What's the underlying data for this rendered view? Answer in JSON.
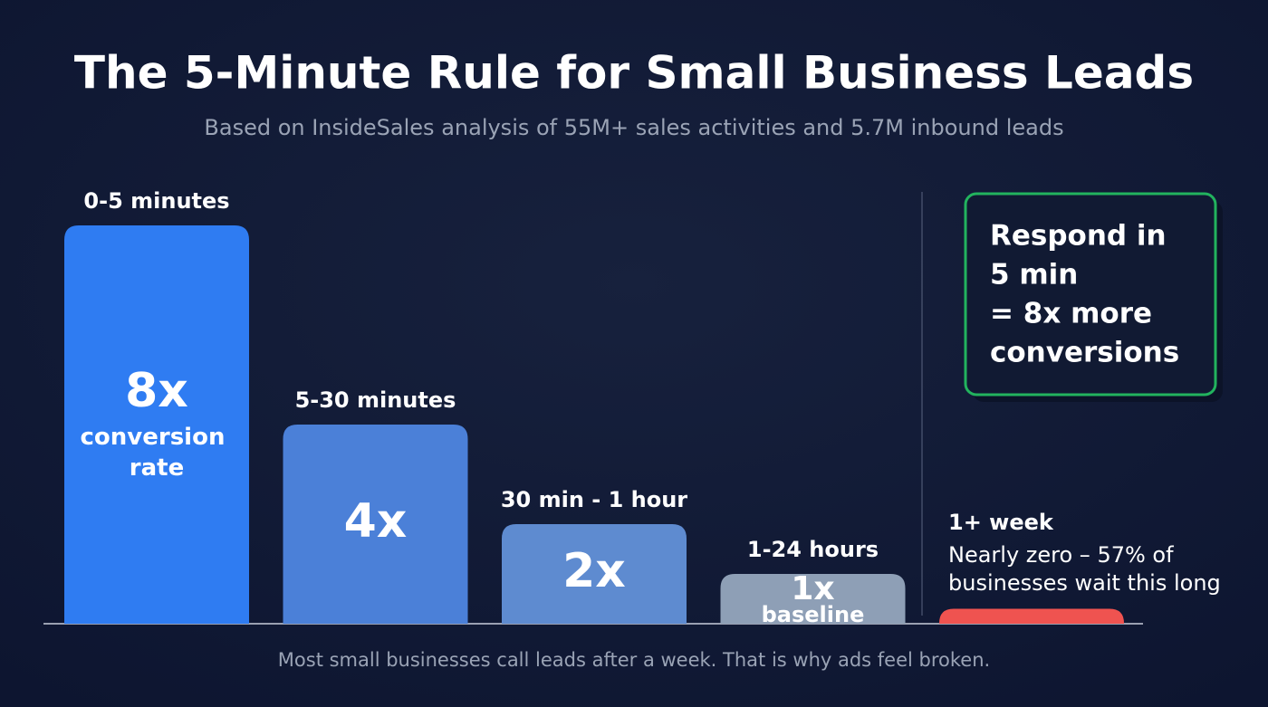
{
  "chart_data": {
    "type": "bar",
    "title": "The 5-Minute Rule for Small Business Leads",
    "subtitle": "Based on InsideSales analysis of 55M+ sales activities and 5.7M inbound leads",
    "categories": [
      "0-5 minutes",
      "5-30 minutes",
      "30 min - 1 hour",
      "1-24 hours",
      "1+ week"
    ],
    "values": [
      8,
      4,
      2,
      1,
      0.3
    ],
    "value_labels": [
      "8x",
      "4x",
      "2x",
      "1x",
      null
    ],
    "bar_notes": [
      "conversion rate",
      null,
      null,
      "baseline",
      "Nearly zero – 57% of businesses wait this long"
    ],
    "colors": [
      "#2f7cf2",
      "#4b80d8",
      "#5e8bd0",
      "#8e9fb6",
      "#ef5350"
    ],
    "ylim": [
      0,
      8
    ],
    "callout": [
      "Respond in",
      "5 min",
      "= 8x more",
      "conversions"
    ],
    "callout_color": "#22b35e",
    "footer": "Most small businesses call leads after a week. That is why ads feel broken."
  }
}
